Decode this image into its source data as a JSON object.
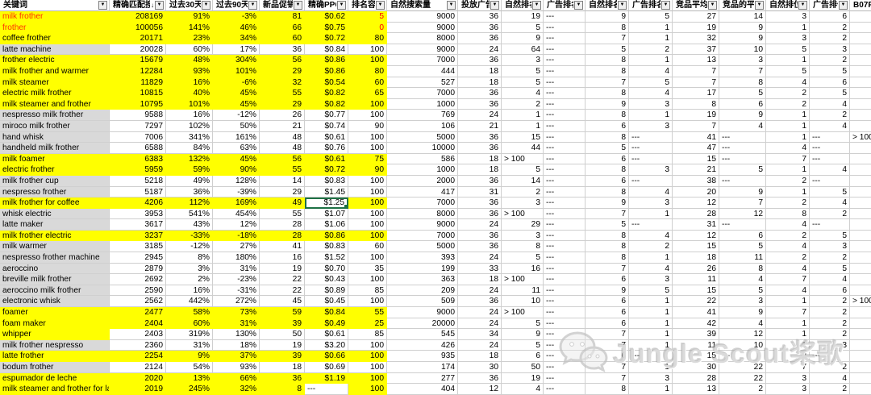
{
  "app": {
    "type": "spreadsheet-keyword-research"
  },
  "colors": {
    "highlight_yellow": "#FFFF00",
    "keyword_gray": "#D9D9D9",
    "keyword_red": "#FF3300",
    "value_red": "#FF0000",
    "selection_green": "#1E7145",
    "gridline": "#CFCFCF"
  },
  "watermark": {
    "icon": "wechat-icon",
    "text": "Jungle Scout桨歌"
  },
  "table": {
    "columns": [
      {
        "id": "keyword",
        "label": "关键词"
      },
      {
        "id": "exact-match-volume",
        "label": "精确匹配搜",
        "sorted": true
      },
      {
        "id": "trend-30d",
        "label": "过去30天趋"
      },
      {
        "id": "trend-90d",
        "label": "过去90天趋"
      },
      {
        "id": "new-product-promo",
        "label": "新品促销数"
      },
      {
        "id": "exact-ppc-bid",
        "label": "精确PPC竞"
      },
      {
        "id": "rank-ease",
        "label": "排名容易度"
      },
      {
        "id": "organic-search",
        "label": "自然搜索量"
      },
      {
        "id": "ad-products",
        "label": "投放广告商"
      },
      {
        "id": "organic-rank",
        "label": "自然排名"
      },
      {
        "id": "ad-rank",
        "label": "广告排名"
      },
      {
        "id": "organic-rank-page",
        "label": "自然排名在"
      },
      {
        "id": "ad-rank-page",
        "label": "广告排名在"
      },
      {
        "id": "competitor-avg",
        "label": "竞品平均"
      },
      {
        "id": "competitor-avg2",
        "label": "竞品的平"
      },
      {
        "id": "organic-position",
        "label": "自然排位"
      },
      {
        "id": "ad-position",
        "label": "广告排位"
      },
      {
        "id": "asin",
        "label": "B07PHSK"
      }
    ],
    "selected_cell": {
      "row": 17,
      "col": 5
    },
    "red_value_cells": [
      [
        0,
        6
      ],
      [
        1,
        6
      ]
    ],
    "white_override_cells": [
      [
        34,
        5
      ]
    ],
    "rows": [
      {
        "kw_bg": "yellow",
        "kw_red": true,
        "zone": "yellow",
        "values": [
          "milk frother",
          "208169",
          "91%",
          "-3%",
          "81",
          "$0.62",
          "5",
          "9000",
          "36",
          "19",
          "---",
          "9",
          "5",
          "27",
          "14",
          "3",
          "6",
          "1"
        ]
      },
      {
        "kw_bg": "yellow",
        "kw_red": true,
        "zone": "yellow",
        "values": [
          "frother",
          "100056",
          "141%",
          "46%",
          "66",
          "$0.75",
          "0",
          "9000",
          "36",
          "5",
          "---",
          "8",
          "1",
          "19",
          "9",
          "1",
          "2",
          "6"
        ]
      },
      {
        "kw_bg": "yellow",
        "kw_red": false,
        "zone": "yellow",
        "values": [
          "coffee frother",
          "20171",
          "23%",
          "34%",
          "60",
          "$0.72",
          "80",
          "8000",
          "36",
          "9",
          "---",
          "7",
          "1",
          "32",
          "9",
          "3",
          "2",
          "7"
        ]
      },
      {
        "kw_bg": "gray",
        "kw_red": false,
        "zone": "white",
        "values": [
          "latte machine",
          "20028",
          "60%",
          "17%",
          "36",
          "$0.84",
          "100",
          "9000",
          "24",
          "64",
          "---",
          "5",
          "2",
          "37",
          "10",
          "5",
          "3",
          "16"
        ]
      },
      {
        "kw_bg": "yellow",
        "kw_red": false,
        "zone": "yellow",
        "values": [
          "frother electric",
          "15679",
          "48%",
          "304%",
          "56",
          "$0.86",
          "100",
          "7000",
          "36",
          "3",
          "---",
          "8",
          "1",
          "13",
          "3",
          "1",
          "2",
          "4"
        ]
      },
      {
        "kw_bg": "yellow",
        "kw_red": false,
        "zone": "yellow",
        "values": [
          "milk frother and warmer",
          "12284",
          "93%",
          "101%",
          "29",
          "$0.86",
          "80",
          "444",
          "18",
          "5",
          "---",
          "8",
          "4",
          "7",
          "7",
          "5",
          "5",
          "1"
        ]
      },
      {
        "kw_bg": "yellow",
        "kw_red": false,
        "zone": "yellow",
        "values": [
          "milk steamer",
          "11829",
          "16%",
          "-6%",
          "32",
          "$0.54",
          "60",
          "527",
          "18",
          "5",
          "---",
          "7",
          "5",
          "7",
          "8",
          "4",
          "6",
          "1"
        ]
      },
      {
        "kw_bg": "yellow",
        "kw_red": false,
        "zone": "yellow",
        "values": [
          "electric milk frother",
          "10815",
          "40%",
          "45%",
          "55",
          "$0.82",
          "65",
          "7000",
          "36",
          "4",
          "---",
          "8",
          "4",
          "17",
          "5",
          "2",
          "5",
          "3"
        ]
      },
      {
        "kw_bg": "yellow",
        "kw_red": false,
        "zone": "yellow",
        "values": [
          "milk steamer and frother",
          "10795",
          "101%",
          "45%",
          "29",
          "$0.82",
          "100",
          "1000",
          "36",
          "2",
          "---",
          "9",
          "3",
          "8",
          "6",
          "2",
          "4",
          "1"
        ]
      },
      {
        "kw_bg": "gray",
        "kw_red": false,
        "zone": "white",
        "values": [
          "nespresso milk frother",
          "9588",
          "16%",
          "-12%",
          "26",
          "$0.77",
          "100",
          "769",
          "24",
          "1",
          "---",
          "8",
          "1",
          "19",
          "9",
          "1",
          "2",
          "3"
        ]
      },
      {
        "kw_bg": "gray",
        "kw_red": false,
        "zone": "white",
        "values": [
          "miroco milk frother",
          "7297",
          "102%",
          "50%",
          "21",
          "$0.74",
          "90",
          "106",
          "21",
          "1",
          "---",
          "6",
          "3",
          "7",
          "4",
          "1",
          "4",
          "8"
        ]
      },
      {
        "kw_bg": "gray",
        "kw_red": false,
        "zone": "white",
        "values": [
          "hand whisk",
          "7006",
          "341%",
          "161%",
          "48",
          "$0.61",
          "100",
          "5000",
          "36",
          "15",
          "---",
          "8",
          "---",
          "41",
          "---",
          "1",
          "---",
          "> 100"
        ]
      },
      {
        "kw_bg": "gray",
        "kw_red": false,
        "zone": "white",
        "values": [
          "handheld milk frother",
          "6588",
          "84%",
          "63%",
          "48",
          "$0.76",
          "100",
          "10000",
          "36",
          "44",
          "---",
          "5",
          "---",
          "47",
          "---",
          "4",
          "---",
          "82"
        ]
      },
      {
        "kw_bg": "yellow",
        "kw_red": false,
        "zone": "yellow",
        "values": [
          "milk foamer",
          "6383",
          "132%",
          "45%",
          "56",
          "$0.61",
          "75",
          "586",
          "18",
          "> 100",
          "---",
          "6",
          "---",
          "15",
          "---",
          "7",
          "---",
          "4"
        ]
      },
      {
        "kw_bg": "yellow",
        "kw_red": false,
        "zone": "yellow",
        "values": [
          "electric frother",
          "5959",
          "59%",
          "90%",
          "55",
          "$0.72",
          "90",
          "1000",
          "18",
          "5",
          "---",
          "8",
          "3",
          "21",
          "5",
          "1",
          "4",
          "16"
        ]
      },
      {
        "kw_bg": "gray",
        "kw_red": false,
        "zone": "white",
        "values": [
          "milk frother cup",
          "5218",
          "49%",
          "128%",
          "14",
          "$0.83",
          "100",
          "2000",
          "36",
          "14",
          "---",
          "6",
          "---",
          "38",
          "---",
          "2",
          "---",
          "27"
        ]
      },
      {
        "kw_bg": "gray",
        "kw_red": false,
        "zone": "white",
        "values": [
          "nespresso frother",
          "5187",
          "36%",
          "-39%",
          "29",
          "$1.45",
          "100",
          "417",
          "31",
          "2",
          "---",
          "8",
          "4",
          "20",
          "9",
          "1",
          "5",
          "5"
        ]
      },
      {
        "kw_bg": "yellow",
        "kw_red": false,
        "zone": "yellow",
        "values": [
          "milk frother for coffee",
          "4206",
          "112%",
          "169%",
          "49",
          "$1.25",
          "100",
          "7000",
          "36",
          "3",
          "---",
          "9",
          "3",
          "12",
          "7",
          "2",
          "4",
          "4"
        ]
      },
      {
        "kw_bg": "gray",
        "kw_red": false,
        "zone": "white",
        "values": [
          "whisk electric",
          "3953",
          "541%",
          "454%",
          "55",
          "$1.07",
          "100",
          "8000",
          "36",
          "> 100",
          "---",
          "7",
          "1",
          "28",
          "12",
          "8",
          "2",
          "71"
        ]
      },
      {
        "kw_bg": "gray",
        "kw_red": false,
        "zone": "white",
        "values": [
          "latte maker",
          "3617",
          "43%",
          "12%",
          "28",
          "$1.06",
          "100",
          "9000",
          "24",
          "29",
          "---",
          "5",
          "---",
          "31",
          "---",
          "4",
          "---",
          "48"
        ]
      },
      {
        "kw_bg": "yellow",
        "kw_red": false,
        "zone": "yellow",
        "values": [
          "milk frother electric",
          "3237",
          "-33%",
          "-18%",
          "28",
          "$0.86",
          "100",
          "7000",
          "36",
          "3",
          "---",
          "8",
          "4",
          "12",
          "6",
          "2",
          "5",
          "1"
        ]
      },
      {
        "kw_bg": "gray",
        "kw_red": false,
        "zone": "white",
        "values": [
          "milk warmer",
          "3185",
          "-12%",
          "27%",
          "41",
          "$0.83",
          "60",
          "5000",
          "36",
          "8",
          "---",
          "8",
          "2",
          "15",
          "5",
          "4",
          "3",
          "2"
        ]
      },
      {
        "kw_bg": "gray",
        "kw_red": false,
        "zone": "white",
        "values": [
          "nespresso frother machine",
          "2945",
          "8%",
          "180%",
          "16",
          "$1.52",
          "100",
          "393",
          "24",
          "5",
          "---",
          "8",
          "1",
          "18",
          "11",
          "2",
          "2",
          "14"
        ]
      },
      {
        "kw_bg": "gray",
        "kw_red": false,
        "zone": "white",
        "values": [
          "aeroccino",
          "2879",
          "3%",
          "31%",
          "19",
          "$0.70",
          "35",
          "199",
          "33",
          "16",
          "---",
          "7",
          "4",
          "26",
          "8",
          "4",
          "5",
          "13"
        ]
      },
      {
        "kw_bg": "gray",
        "kw_red": false,
        "zone": "white",
        "values": [
          "breville milk frother",
          "2692",
          "2%",
          "-23%",
          "22",
          "$0.43",
          "100",
          "363",
          "18",
          "> 100",
          "---",
          "6",
          "3",
          "11",
          "4",
          "7",
          "4",
          "3"
        ]
      },
      {
        "kw_bg": "gray",
        "kw_red": false,
        "zone": "white",
        "values": [
          "aeroccino milk frother",
          "2590",
          "16%",
          "-31%",
          "22",
          "$0.89",
          "85",
          "209",
          "24",
          "11",
          "---",
          "9",
          "5",
          "15",
          "5",
          "4",
          "6",
          "9"
        ]
      },
      {
        "kw_bg": "gray",
        "kw_red": false,
        "zone": "white",
        "values": [
          "electronic whisk",
          "2562",
          "442%",
          "272%",
          "45",
          "$0.45",
          "100",
          "509",
          "36",
          "10",
          "---",
          "6",
          "1",
          "22",
          "3",
          "1",
          "2",
          "> 100"
        ]
      },
      {
        "kw_bg": "yellow",
        "kw_red": false,
        "zone": "yellow",
        "values": [
          "foamer",
          "2477",
          "58%",
          "73%",
          "59",
          "$0.84",
          "55",
          "9000",
          "24",
          "> 100",
          "---",
          "6",
          "1",
          "41",
          "9",
          "7",
          "2",
          "37"
        ]
      },
      {
        "kw_bg": "yellow",
        "kw_red": false,
        "zone": "yellow",
        "values": [
          "foam maker",
          "2404",
          "60%",
          "31%",
          "39",
          "$0.49",
          "25",
          "20000",
          "24",
          "5",
          "---",
          "6",
          "1",
          "42",
          "4",
          "1",
          "2",
          "36"
        ]
      },
      {
        "kw_bg": "yellow",
        "kw_red": false,
        "zone": "white",
        "values": [
          "whipper",
          "2403",
          "319%",
          "130%",
          "50",
          "$0.61",
          "85",
          "545",
          "34",
          "9",
          "---",
          "7",
          "1",
          "39",
          "12",
          "1",
          "2",
          "15"
        ]
      },
      {
        "kw_bg": "gray",
        "kw_red": false,
        "zone": "white",
        "values": [
          "milk frother nespresso",
          "2360",
          "31%",
          "18%",
          "19",
          "$3.20",
          "100",
          "426",
          "24",
          "5",
          "---",
          "7",
          "1",
          "11",
          "10",
          "1",
          "3",
          "8"
        ]
      },
      {
        "kw_bg": "yellow",
        "kw_red": false,
        "zone": "yellow",
        "values": [
          "latte frother",
          "2254",
          "9%",
          "37%",
          "39",
          "$0.66",
          "100",
          "935",
          "18",
          "6",
          "---",
          "6",
          "---",
          "15",
          "---",
          "2",
          "---",
          "4"
        ]
      },
      {
        "kw_bg": "gray",
        "kw_red": false,
        "zone": "white",
        "values": [
          "bodum frother",
          "2124",
          "54%",
          "93%",
          "18",
          "$0.69",
          "100",
          "174",
          "30",
          "50",
          "---",
          "7",
          "1",
          "30",
          "22",
          "7",
          "2",
          "9"
        ]
      },
      {
        "kw_bg": "yellow",
        "kw_red": false,
        "zone": "yellow",
        "values": [
          "espumador de leche",
          "2020",
          "13%",
          "66%",
          "36",
          "$1.19",
          "100",
          "277",
          "36",
          "19",
          "---",
          "7",
          "3",
          "28",
          "22",
          "3",
          "4",
          "3"
        ]
      },
      {
        "kw_bg": "yellow",
        "kw_red": false,
        "zone": "yellow",
        "values": [
          "milk steamer and frother for latt",
          "2019",
          "245%",
          "32%",
          "8",
          "---",
          "100",
          "404",
          "12",
          "4",
          "---",
          "8",
          "1",
          "13",
          "2",
          "3",
          "2",
          "1"
        ]
      }
    ]
  }
}
